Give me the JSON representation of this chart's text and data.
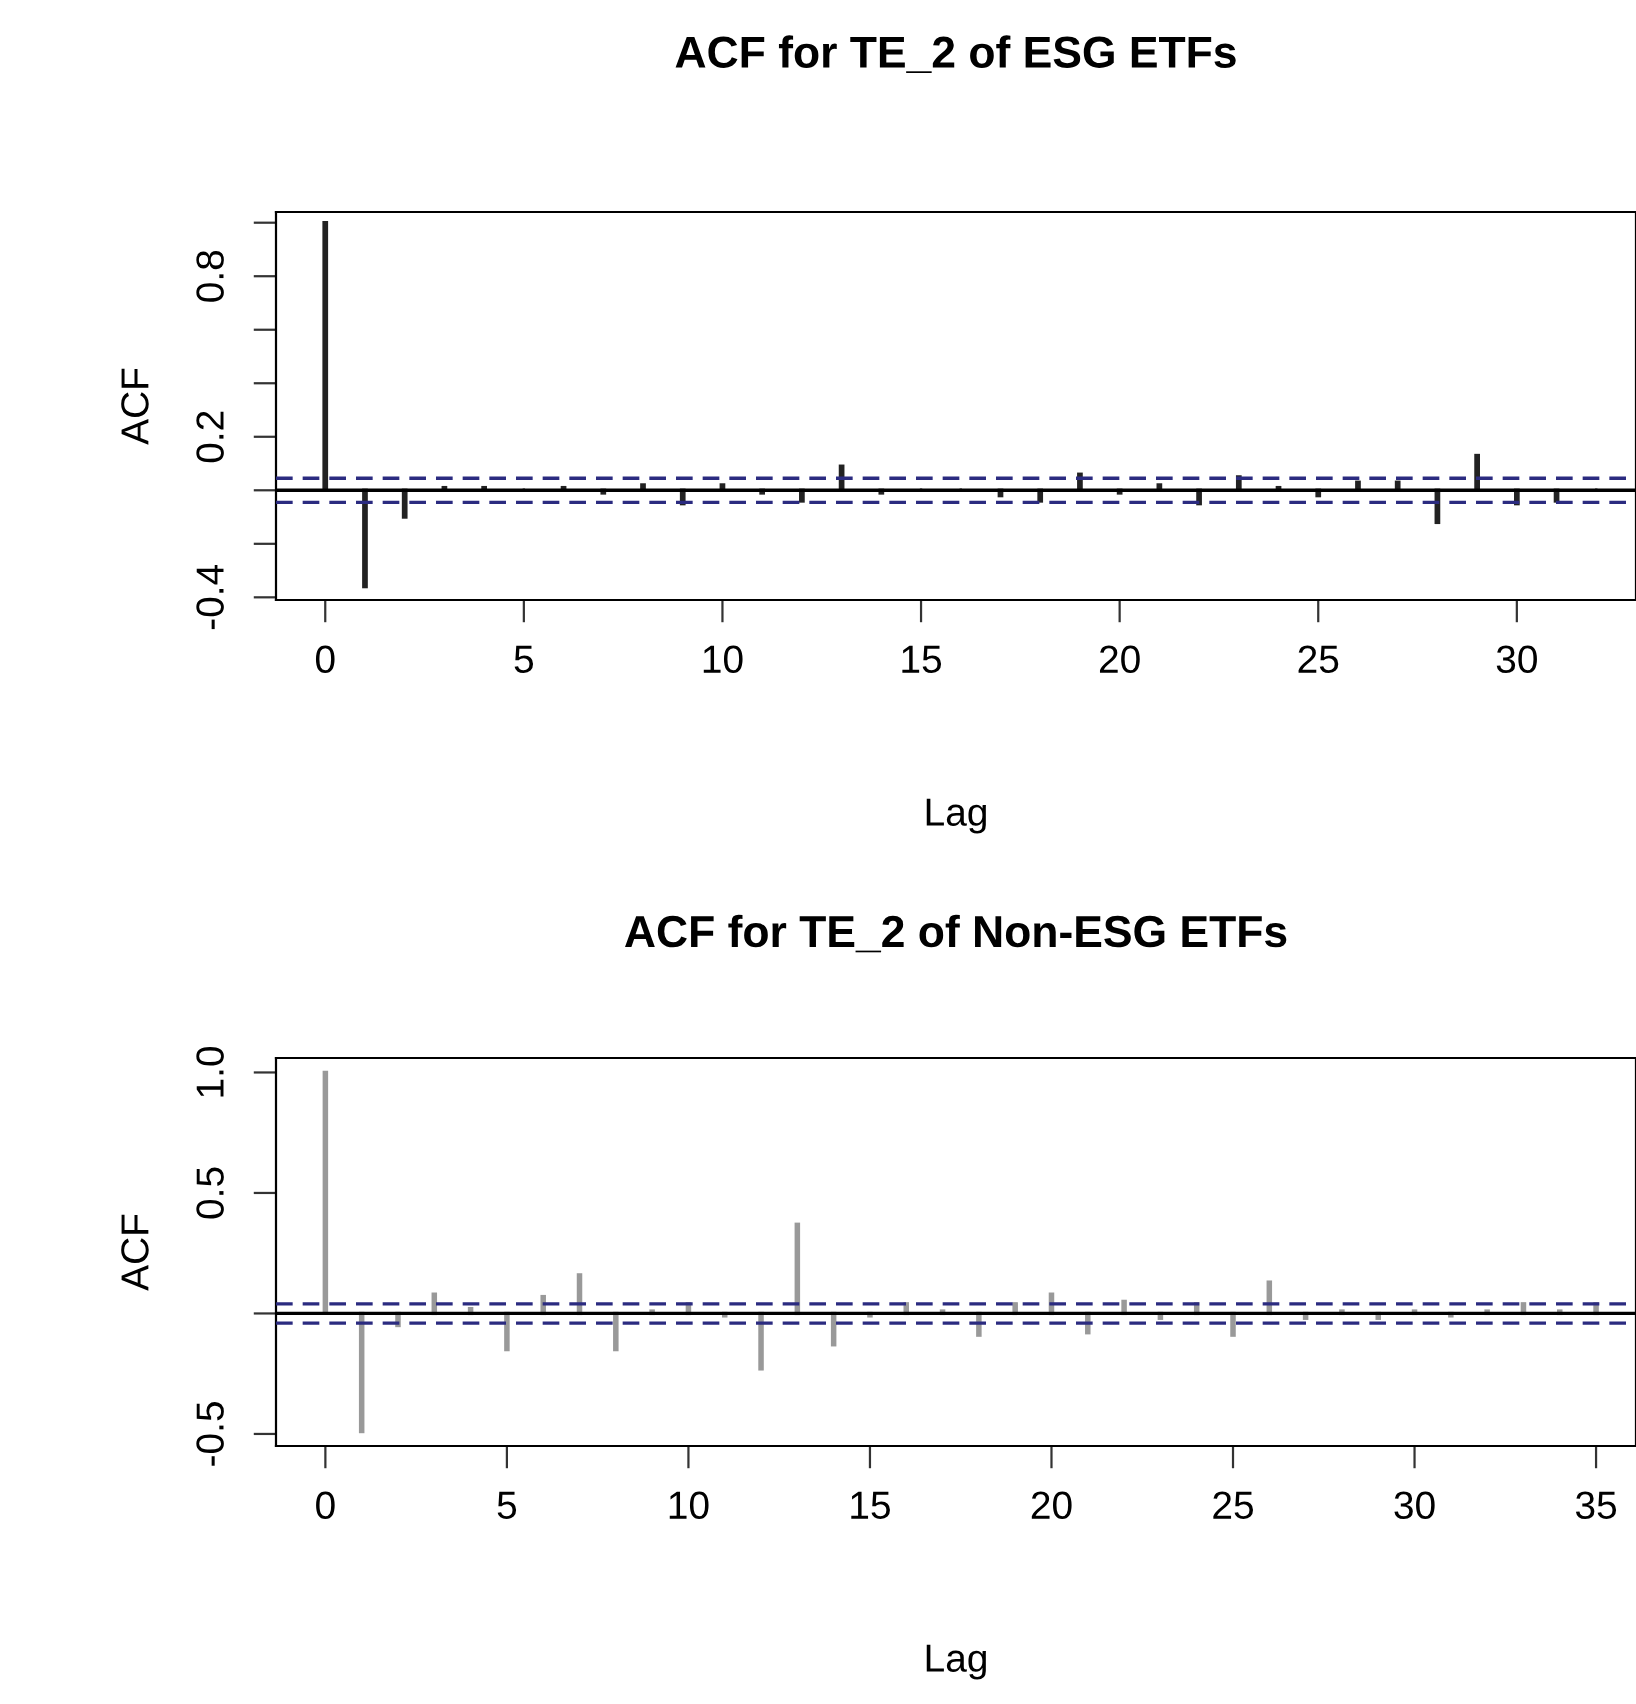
{
  "chart_data": [
    {
      "type": "bar",
      "title": "ACF for TE_2 of ESG ETFs",
      "xlabel": "Lag",
      "ylabel": "ACF",
      "x": [
        0,
        1,
        2,
        3,
        4,
        5,
        6,
        7,
        8,
        9,
        10,
        11,
        12,
        13,
        14,
        15,
        16,
        17,
        18,
        19,
        20,
        21,
        22,
        23,
        24,
        25,
        26,
        27,
        28,
        29,
        30,
        31,
        32
      ],
      "values": [
        1.0,
        -0.36,
        -0.1,
        0.01,
        0.01,
        0.0,
        0.01,
        -0.01,
        0.02,
        -0.05,
        0.02,
        -0.01,
        -0.04,
        0.09,
        -0.01,
        0.0,
        0.0,
        -0.02,
        -0.04,
        0.06,
        -0.01,
        0.02,
        -0.05,
        0.05,
        0.01,
        -0.02,
        0.03,
        0.03,
        -0.12,
        0.13,
        -0.05,
        -0.04,
        0.0
      ],
      "color": "#222222",
      "xlim": [
        -1.24,
        33
      ],
      "ylim": [
        -0.41,
        1.04
      ],
      "xticks": [
        0,
        5,
        10,
        15,
        20,
        25,
        30
      ],
      "yticks": [
        -0.4,
        {
          "value": -0.2,
          "label": null
        },
        {
          "value": 0.0,
          "label": null
        },
        0.2,
        {
          "value": 0.4,
          "label": null
        },
        {
          "value": 0.6,
          "label": null
        },
        0.8,
        {
          "value": 1.0,
          "label": null
        }
      ],
      "ref_lines": [
        {
          "axis": "y",
          "value": 0,
          "color": "#000000",
          "line_style": "solid"
        },
        {
          "axis": "y",
          "value": 0.045,
          "color": "#2b2b80",
          "line_style": "dashed"
        },
        {
          "axis": "y",
          "value": -0.045,
          "color": "#2b2b80",
          "line_style": "dashed"
        }
      ],
      "grid": false,
      "legend": false
    },
    {
      "type": "bar",
      "title": "ACF for TE_2 of Non-ESG ETFs",
      "xlabel": "Lag",
      "ylabel": "ACF",
      "x": [
        0,
        1,
        2,
        3,
        4,
        5,
        6,
        7,
        8,
        9,
        10,
        11,
        12,
        13,
        14,
        15,
        16,
        17,
        18,
        19,
        20,
        21,
        22,
        23,
        24,
        25,
        26,
        27,
        28,
        29,
        30,
        31,
        32,
        33,
        34,
        35
      ],
      "values": [
        1.0,
        -0.49,
        -0.05,
        0.08,
        0.02,
        -0.15,
        0.07,
        0.16,
        -0.15,
        0.01,
        0.04,
        -0.01,
        -0.23,
        0.37,
        -0.13,
        -0.01,
        0.04,
        0.01,
        -0.09,
        0.04,
        0.08,
        -0.08,
        0.05,
        -0.02,
        0.04,
        -0.09,
        0.13,
        -0.02,
        0.01,
        -0.02,
        0.01,
        -0.01,
        0.01,
        0.04,
        0.01,
        0.04
      ],
      "color": "#999999",
      "xlim": [
        -1.36,
        36.1
      ],
      "ylim": [
        -0.55,
        1.06
      ],
      "xticks": [
        0,
        5,
        10,
        15,
        20,
        25,
        30,
        35
      ],
      "yticks": [
        -0.5,
        {
          "value": 0.0,
          "label": null
        },
        0.5,
        {
          "value": 1.0,
          "label": "1.0"
        }
      ],
      "ref_lines": [
        {
          "axis": "y",
          "value": 0,
          "color": "#000000",
          "line_style": "solid"
        },
        {
          "axis": "y",
          "value": 0.04,
          "color": "#2b2b80",
          "line_style": "dashed"
        },
        {
          "axis": "y",
          "value": -0.04,
          "color": "#2b2b80",
          "line_style": "dashed"
        }
      ],
      "grid": false,
      "legend": false
    }
  ]
}
